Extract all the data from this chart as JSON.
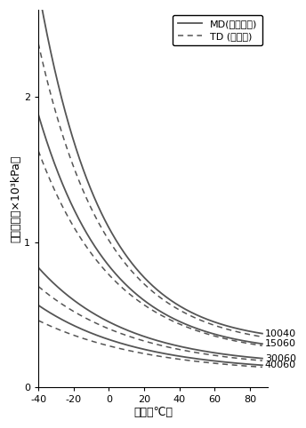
{
  "xlabel": "温度（℃）",
  "ylabel": "引張強さ（×10³kPa）",
  "xlim": [
    -40,
    90
  ],
  "ylim": [
    0,
    2.6
  ],
  "xticks": [
    -40,
    -20,
    0,
    20,
    40,
    60,
    80
  ],
  "yticks": [
    0,
    1.0,
    2.0
  ],
  "legend_md": "MD(長さ方向)",
  "legend_td": "TD (幅方向)",
  "line_color_dark": "#555555",
  "line_color_light": "#888888",
  "series_labels": [
    "10040",
    "15060",
    "30060",
    "40060"
  ],
  "md_params": [
    {
      "a": 2.45,
      "b": 0.028,
      "c": 0.3
    },
    {
      "a": 1.65,
      "b": 0.025,
      "c": 0.23
    },
    {
      "a": 0.68,
      "b": 0.02,
      "c": 0.145
    },
    {
      "a": 0.46,
      "b": 0.018,
      "c": 0.105
    }
  ],
  "td_params": [
    {
      "a": 2.1,
      "b": 0.026,
      "c": 0.27
    },
    {
      "a": 1.42,
      "b": 0.023,
      "c": 0.21
    },
    {
      "a": 0.57,
      "b": 0.018,
      "c": 0.125
    },
    {
      "a": 0.37,
      "b": 0.016,
      "c": 0.09
    }
  ]
}
